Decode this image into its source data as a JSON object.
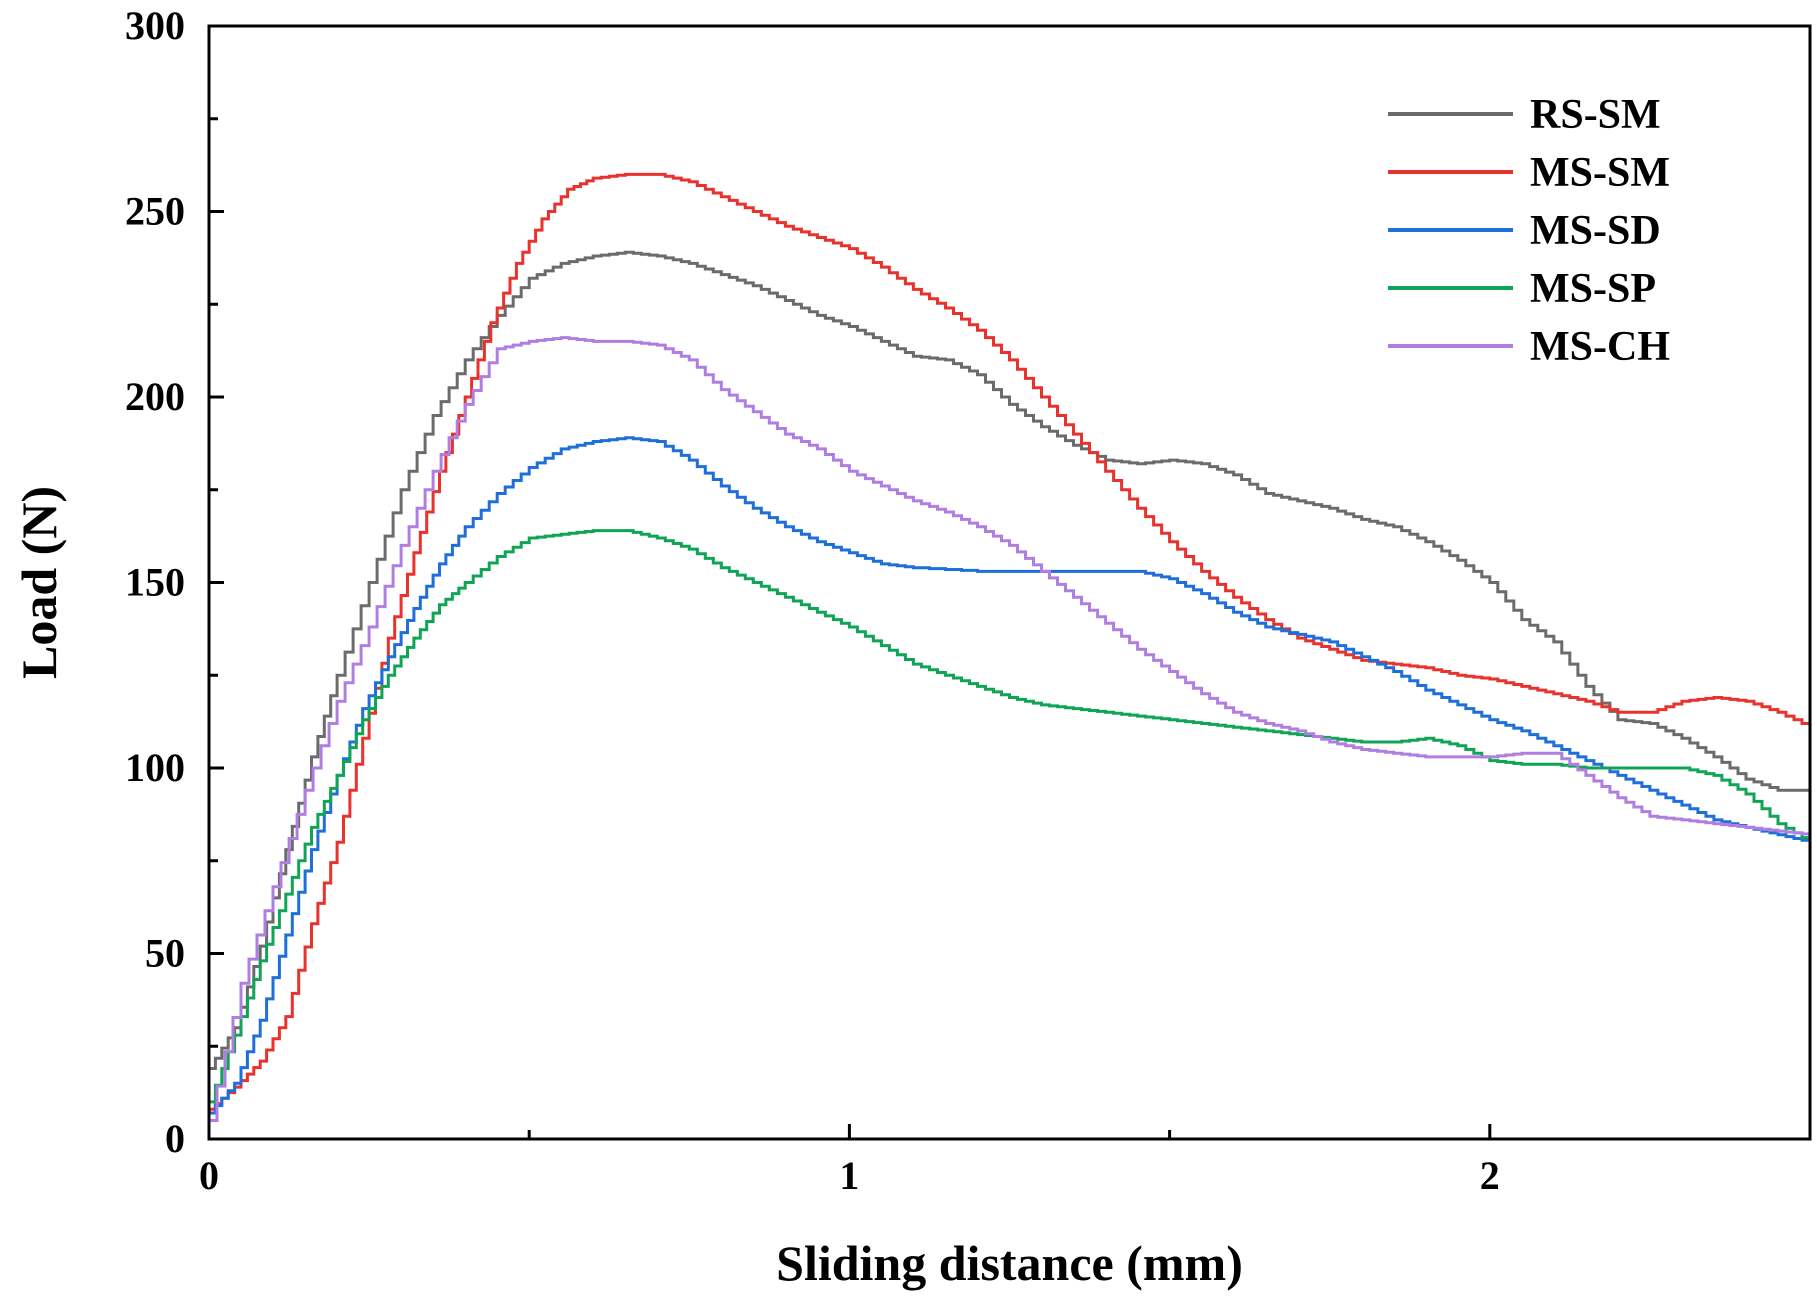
{
  "chart_data": {
    "type": "line",
    "title": "",
    "xlabel": "Sliding distance (mm)",
    "ylabel": "Load (N)",
    "xlim": [
      0,
      2.5
    ],
    "ylim": [
      0,
      300
    ],
    "xticks": [
      0,
      1,
      2
    ],
    "xtick_labels": [
      "0",
      "1",
      "2"
    ],
    "x_minor_ticks": [
      0.5,
      1.5
    ],
    "yticks": [
      0,
      50,
      100,
      150,
      200,
      250,
      300
    ],
    "ytick_labels": [
      "0",
      "50",
      "100",
      "150",
      "200",
      "250",
      "300"
    ],
    "y_minor_ticks": [
      25,
      75,
      125,
      175,
      225,
      275
    ],
    "grid": false,
    "legend_position": "top-right",
    "series": [
      {
        "name": "RS-SM",
        "color": "#6b6b6b",
        "points": [
          [
            0,
            19
          ],
          [
            0.04,
            30
          ],
          [
            0.08,
            52
          ],
          [
            0.12,
            78
          ],
          [
            0.16,
            103
          ],
          [
            0.2,
            125
          ],
          [
            0.25,
            150
          ],
          [
            0.3,
            175
          ],
          [
            0.35,
            195
          ],
          [
            0.4,
            210
          ],
          [
            0.45,
            222
          ],
          [
            0.5,
            232
          ],
          [
            0.55,
            236
          ],
          [
            0.6,
            238
          ],
          [
            0.65,
            239
          ],
          [
            0.7,
            238
          ],
          [
            0.75,
            236
          ],
          [
            0.8,
            233
          ],
          [
            0.85,
            230
          ],
          [
            0.9,
            226
          ],
          [
            0.95,
            222
          ],
          [
            1.0,
            219
          ],
          [
            1.05,
            215
          ],
          [
            1.1,
            211
          ],
          [
            1.15,
            210
          ],
          [
            1.2,
            206
          ],
          [
            1.25,
            198
          ],
          [
            1.3,
            192
          ],
          [
            1.35,
            187
          ],
          [
            1.4,
            183
          ],
          [
            1.45,
            182
          ],
          [
            1.5,
            183
          ],
          [
            1.55,
            182
          ],
          [
            1.6,
            179
          ],
          [
            1.65,
            174
          ],
          [
            1.7,
            172
          ],
          [
            1.75,
            170
          ],
          [
            1.8,
            167
          ],
          [
            1.85,
            165
          ],
          [
            1.9,
            161
          ],
          [
            1.95,
            156
          ],
          [
            2.0,
            150
          ],
          [
            2.05,
            140
          ],
          [
            2.1,
            134
          ],
          [
            2.15,
            122
          ],
          [
            2.2,
            113
          ],
          [
            2.25,
            112
          ],
          [
            2.3,
            108
          ],
          [
            2.35,
            103
          ],
          [
            2.4,
            97
          ],
          [
            2.45,
            94
          ],
          [
            2.5,
            94
          ]
        ]
      },
      {
        "name": "MS-SM",
        "color": "#e8322d",
        "points": [
          [
            0,
            8
          ],
          [
            0.04,
            14
          ],
          [
            0.08,
            21
          ],
          [
            0.12,
            33
          ],
          [
            0.16,
            58
          ],
          [
            0.2,
            80
          ],
          [
            0.24,
            108
          ],
          [
            0.28,
            135
          ],
          [
            0.32,
            158
          ],
          [
            0.36,
            180
          ],
          [
            0.4,
            200
          ],
          [
            0.44,
            220
          ],
          [
            0.48,
            236
          ],
          [
            0.52,
            248
          ],
          [
            0.56,
            256
          ],
          [
            0.6,
            259
          ],
          [
            0.65,
            260
          ],
          [
            0.7,
            260
          ],
          [
            0.75,
            258
          ],
          [
            0.8,
            254
          ],
          [
            0.85,
            250
          ],
          [
            0.9,
            246
          ],
          [
            0.95,
            243
          ],
          [
            1.0,
            240
          ],
          [
            1.05,
            235
          ],
          [
            1.1,
            229
          ],
          [
            1.15,
            224
          ],
          [
            1.2,
            218
          ],
          [
            1.25,
            210
          ],
          [
            1.3,
            200
          ],
          [
            1.35,
            190
          ],
          [
            1.4,
            180
          ],
          [
            1.45,
            170
          ],
          [
            1.5,
            161
          ],
          [
            1.55,
            153
          ],
          [
            1.6,
            146
          ],
          [
            1.65,
            140
          ],
          [
            1.7,
            135
          ],
          [
            1.75,
            132
          ],
          [
            1.8,
            129
          ],
          [
            1.85,
            128
          ],
          [
            1.9,
            127
          ],
          [
            1.95,
            125
          ],
          [
            2.0,
            124
          ],
          [
            2.05,
            122
          ],
          [
            2.1,
            120
          ],
          [
            2.15,
            118
          ],
          [
            2.2,
            115
          ],
          [
            2.25,
            115
          ],
          [
            2.3,
            118
          ],
          [
            2.35,
            119
          ],
          [
            2.4,
            118
          ],
          [
            2.45,
            115
          ],
          [
            2.5,
            111
          ]
        ]
      },
      {
        "name": "MS-SD",
        "color": "#1e6fd9",
        "points": [
          [
            0,
            7
          ],
          [
            0.04,
            15
          ],
          [
            0.08,
            32
          ],
          [
            0.12,
            55
          ],
          [
            0.16,
            78
          ],
          [
            0.2,
            98
          ],
          [
            0.24,
            116
          ],
          [
            0.28,
            130
          ],
          [
            0.32,
            143
          ],
          [
            0.36,
            155
          ],
          [
            0.4,
            165
          ],
          [
            0.45,
            174
          ],
          [
            0.5,
            181
          ],
          [
            0.55,
            186
          ],
          [
            0.6,
            188
          ],
          [
            0.65,
            189
          ],
          [
            0.7,
            188
          ],
          [
            0.75,
            183
          ],
          [
            0.8,
            176
          ],
          [
            0.85,
            170
          ],
          [
            0.9,
            165
          ],
          [
            0.95,
            161
          ],
          [
            1.0,
            158
          ],
          [
            1.05,
            155
          ],
          [
            1.1,
            154
          ],
          [
            1.2,
            153
          ],
          [
            1.3,
            153
          ],
          [
            1.4,
            153
          ],
          [
            1.45,
            153
          ],
          [
            1.5,
            151
          ],
          [
            1.55,
            147
          ],
          [
            1.6,
            142
          ],
          [
            1.65,
            138
          ],
          [
            1.7,
            136
          ],
          [
            1.75,
            134
          ],
          [
            1.8,
            130
          ],
          [
            1.85,
            126
          ],
          [
            1.9,
            121
          ],
          [
            1.95,
            117
          ],
          [
            2.0,
            113
          ],
          [
            2.05,
            110
          ],
          [
            2.1,
            106
          ],
          [
            2.15,
            102
          ],
          [
            2.2,
            98
          ],
          [
            2.25,
            94
          ],
          [
            2.3,
            90
          ],
          [
            2.35,
            86
          ],
          [
            2.4,
            84
          ],
          [
            2.45,
            82
          ],
          [
            2.5,
            80
          ]
        ]
      },
      {
        "name": "MS-SP",
        "color": "#0fa456",
        "points": [
          [
            0,
            10
          ],
          [
            0.04,
            28
          ],
          [
            0.08,
            48
          ],
          [
            0.12,
            66
          ],
          [
            0.16,
            84
          ],
          [
            0.2,
            98
          ],
          [
            0.24,
            113
          ],
          [
            0.28,
            125
          ],
          [
            0.32,
            135
          ],
          [
            0.36,
            144
          ],
          [
            0.4,
            150
          ],
          [
            0.45,
            157
          ],
          [
            0.5,
            162
          ],
          [
            0.55,
            163
          ],
          [
            0.6,
            164
          ],
          [
            0.65,
            164
          ],
          [
            0.7,
            162
          ],
          [
            0.75,
            159
          ],
          [
            0.8,
            154
          ],
          [
            0.85,
            150
          ],
          [
            0.9,
            146
          ],
          [
            0.95,
            142
          ],
          [
            1.0,
            138
          ],
          [
            1.05,
            133
          ],
          [
            1.1,
            128
          ],
          [
            1.15,
            125
          ],
          [
            1.2,
            122
          ],
          [
            1.25,
            119
          ],
          [
            1.3,
            117
          ],
          [
            1.35,
            116
          ],
          [
            1.4,
            115
          ],
          [
            1.45,
            114
          ],
          [
            1.5,
            113
          ],
          [
            1.55,
            112
          ],
          [
            1.6,
            111
          ],
          [
            1.65,
            110
          ],
          [
            1.7,
            109
          ],
          [
            1.75,
            108
          ],
          [
            1.8,
            107
          ],
          [
            1.85,
            107
          ],
          [
            1.9,
            108
          ],
          [
            1.95,
            106
          ],
          [
            2.0,
            102
          ],
          [
            2.05,
            101
          ],
          [
            2.1,
            101
          ],
          [
            2.15,
            100
          ],
          [
            2.2,
            100
          ],
          [
            2.25,
            100
          ],
          [
            2.3,
            100
          ],
          [
            2.35,
            98
          ],
          [
            2.4,
            93
          ],
          [
            2.45,
            85
          ],
          [
            2.5,
            80
          ]
        ]
      },
      {
        "name": "MS-CH",
        "color": "#b07ee0",
        "points": [
          [
            0,
            5
          ],
          [
            0.05,
            42
          ],
          [
            0.1,
            68
          ],
          [
            0.15,
            94
          ],
          [
            0.2,
            118
          ],
          [
            0.25,
            138
          ],
          [
            0.3,
            160
          ],
          [
            0.35,
            180
          ],
          [
            0.4,
            198
          ],
          [
            0.45,
            213
          ],
          [
            0.5,
            215
          ],
          [
            0.55,
            216
          ],
          [
            0.6,
            215
          ],
          [
            0.65,
            215
          ],
          [
            0.7,
            214
          ],
          [
            0.75,
            210
          ],
          [
            0.8,
            202
          ],
          [
            0.85,
            196
          ],
          [
            0.9,
            190
          ],
          [
            0.95,
            186
          ],
          [
            1.0,
            180
          ],
          [
            1.05,
            176
          ],
          [
            1.1,
            172
          ],
          [
            1.15,
            169
          ],
          [
            1.2,
            165
          ],
          [
            1.25,
            160
          ],
          [
            1.3,
            153
          ],
          [
            1.35,
            146
          ],
          [
            1.4,
            139
          ],
          [
            1.45,
            132
          ],
          [
            1.5,
            126
          ],
          [
            1.55,
            120
          ],
          [
            1.6,
            115
          ],
          [
            1.65,
            112
          ],
          [
            1.7,
            110
          ],
          [
            1.75,
            107
          ],
          [
            1.8,
            105
          ],
          [
            1.85,
            104
          ],
          [
            1.9,
            103
          ],
          [
            1.95,
            103
          ],
          [
            2.0,
            103
          ],
          [
            2.05,
            104
          ],
          [
            2.1,
            104
          ],
          [
            2.15,
            98
          ],
          [
            2.2,
            92
          ],
          [
            2.25,
            87
          ],
          [
            2.3,
            86
          ],
          [
            2.35,
            85
          ],
          [
            2.4,
            84
          ],
          [
            2.45,
            83
          ],
          [
            2.5,
            82
          ]
        ]
      }
    ]
  }
}
